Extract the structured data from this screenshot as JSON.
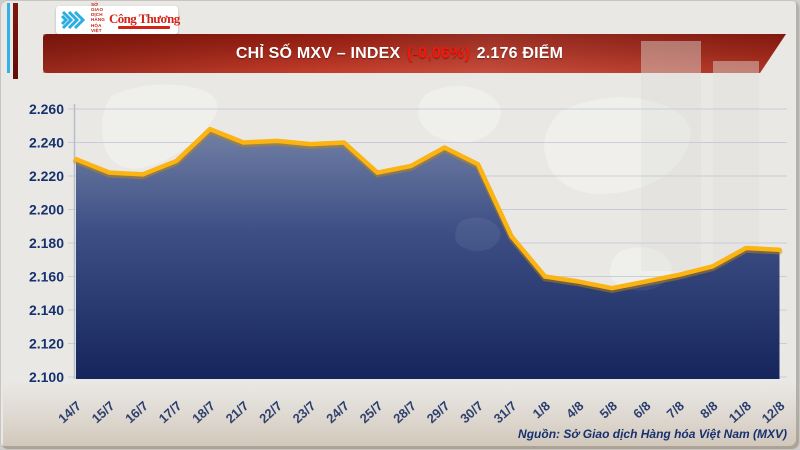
{
  "logos": {
    "mxv_line1": "SỞ GIAO DỊCH",
    "mxv_line2": "HÀNG HÓA",
    "mxv_line3": "VIỆT NAM",
    "congthuong": "Công Thương"
  },
  "banner": {
    "title": "CHỈ SỐ MXV – INDEX",
    "change": "(-0,06%)",
    "value": "2.176 ĐIỂM"
  },
  "source": {
    "text": "Nguồn: Sở Giao dịch Hàng hóa Việt Nam (MXV)"
  },
  "colors": {
    "line": "#fbb411",
    "line_shadow": "#c98a00",
    "fill_top": "#7d8aab",
    "fill_mid": "#3d4f85",
    "fill_bottom": "#16265c",
    "grid": "#c6cdd8",
    "label": "#16316e",
    "banner_red": "#a52a1b",
    "change_red": "#fa150a",
    "accent_blue": "#35b2e5"
  },
  "chart_data": {
    "type": "area",
    "title": "Chỉ số MXV-Index",
    "x": [
      "14/7",
      "15/7",
      "16/7",
      "17/7",
      "18/7",
      "21/7",
      "22/7",
      "23/7",
      "24/7",
      "25/7",
      "28/7",
      "29/7",
      "30/7",
      "31/7",
      "1/8",
      "4/8",
      "5/8",
      "6/8",
      "7/8",
      "8/8",
      "11/8",
      "12/8"
    ],
    "values": [
      2230,
      2222,
      2221,
      2229,
      2248,
      2240,
      2241,
      2239,
      2240,
      2222,
      2226,
      2237,
      2227,
      2184,
      2160,
      2157,
      2153,
      2157,
      2161,
      2166,
      2177,
      2176
    ],
    "ylim": [
      2100,
      2260
    ],
    "yticks": [
      2100,
      2120,
      2140,
      2160,
      2180,
      2200,
      2220,
      2240,
      2260
    ],
    "ytick_labels": [
      "2.100",
      "2.120",
      "2.140",
      "2.160",
      "2.180",
      "2.200",
      "2.220",
      "2.240",
      "2.260"
    ],
    "grid": true,
    "legend": false
  }
}
